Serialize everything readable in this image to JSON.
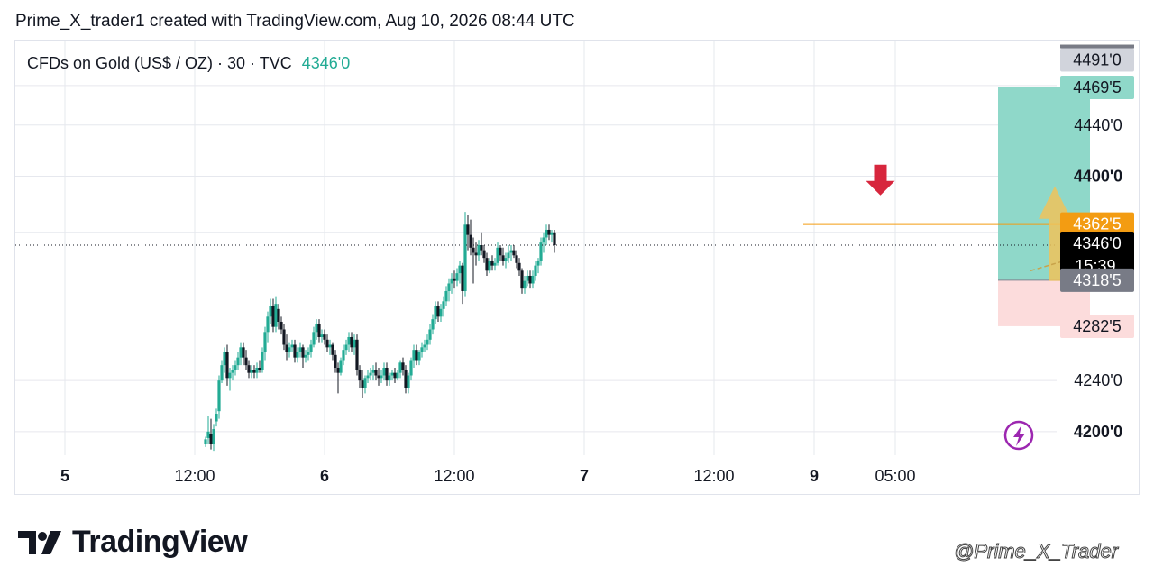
{
  "header": {
    "text": "Prime_X_trader1 created with TradingView.com, Aug 10, 2026 08:44 UTC"
  },
  "legend": {
    "symbol": "CFDs on Gold (US$ / OZ) · 30 · TVC",
    "last_price": "4346'0"
  },
  "branding": {
    "logo_text": "TradingView",
    "watermark": "@Prime_X_Trader"
  },
  "colors": {
    "up": "#22ab94",
    "down": "#131722",
    "target_zone": "#8fd8c9",
    "stop_zone": "#fcdcdc",
    "entry_line": "#f39c12",
    "signal_arrow": "#d7263d",
    "projection_arrow": "#f0c35a"
  },
  "chart_data": {
    "type": "candlestick",
    "y_axis": {
      "ylim": [
        4178,
        4505
      ],
      "ticks": [
        {
          "value": 4440,
          "label": "4440'0",
          "bold": false
        },
        {
          "value": 4400,
          "label": "4400'0",
          "bold": true
        },
        {
          "value": 4240,
          "label": "4240'0",
          "bold": false
        },
        {
          "value": 4200,
          "label": "4200'0",
          "bold": true
        }
      ]
    },
    "x_axis": {
      "ticks": [
        {
          "label": "5",
          "bold": true,
          "pos": 0.0
        },
        {
          "label": "12:00",
          "bold": false,
          "pos": 48.0
        },
        {
          "label": "6",
          "bold": true,
          "pos": 96.0
        },
        {
          "label": "12:00",
          "bold": false,
          "pos": 144.0
        },
        {
          "label": "7",
          "bold": true,
          "pos": 192.0
        },
        {
          "label": "12:00",
          "bold": false,
          "pos": 240.0
        },
        {
          "label": "9",
          "bold": true,
          "pos": 277.0
        },
        {
          "label": "05:00",
          "bold": false,
          "pos": 307.0
        }
      ]
    },
    "price_labels": [
      {
        "value": 4491,
        "label": "4491'0",
        "role": "high"
      },
      {
        "value": 4469.5,
        "label": "4469'5",
        "role": "target"
      },
      {
        "value": 4362.5,
        "label": "4362'5",
        "role": "entry"
      },
      {
        "value": 4346,
        "label": "4346'0",
        "sub": "15:39",
        "role": "last"
      },
      {
        "value": 4318.5,
        "label": "4318'5",
        "role": "stop-edge"
      },
      {
        "value": 4282.5,
        "label": "4282'5",
        "role": "stop"
      }
    ],
    "last_price": 4346,
    "entry_level": 4362.5,
    "position_tool": {
      "x_start": 293,
      "x_end": 327,
      "entry": 4318.5,
      "target": 4469.5,
      "stop": 4282.5
    },
    "signal_arrow": {
      "x": 249.5,
      "price": 4385,
      "direction": "down"
    },
    "projection_arrow": {
      "x": 314,
      "from": 4318,
      "to": 4392,
      "direction": "up"
    },
    "candles": [
      [
        4190,
        4196,
        4188,
        4194
      ],
      [
        4195,
        4212,
        4190,
        4200
      ],
      [
        4198,
        4210,
        4186,
        4190
      ],
      [
        4190,
        4206,
        4185,
        4202
      ],
      [
        4208,
        4218,
        4204,
        4214
      ],
      [
        4216,
        4244,
        4210,
        4240
      ],
      [
        4240,
        4256,
        4238,
        4252
      ],
      [
        4252,
        4266,
        4246,
        4262
      ],
      [
        4262,
        4268,
        4236,
        4242
      ],
      [
        4242,
        4250,
        4232,
        4246
      ],
      [
        4246,
        4252,
        4240,
        4248
      ],
      [
        4248,
        4256,
        4244,
        4252
      ],
      [
        4252,
        4262,
        4248,
        4258
      ],
      [
        4258,
        4270,
        4252,
        4266
      ],
      [
        4266,
        4270,
        4252,
        4258
      ],
      [
        4258,
        4264,
        4248,
        4252
      ],
      [
        4252,
        4256,
        4242,
        4246
      ],
      [
        4246,
        4252,
        4242,
        4248
      ],
      [
        4248,
        4252,
        4242,
        4246
      ],
      [
        4246,
        4254,
        4242,
        4250
      ],
      [
        4250,
        4256,
        4246,
        4248
      ],
      [
        4248,
        4266,
        4246,
        4262
      ],
      [
        4262,
        4282,
        4256,
        4278
      ],
      [
        4278,
        4294,
        4270,
        4290
      ],
      [
        4290,
        4304,
        4284,
        4298
      ],
      [
        4298,
        4304,
        4278,
        4282
      ],
      [
        4282,
        4306,
        4278,
        4300
      ],
      [
        4296,
        4300,
        4280,
        4286
      ],
      [
        4286,
        4290,
        4276,
        4280
      ],
      [
        4280,
        4284,
        4264,
        4268
      ],
      [
        4268,
        4276,
        4256,
        4262
      ],
      [
        4262,
        4270,
        4258,
        4266
      ],
      [
        4266,
        4272,
        4262,
        4268
      ],
      [
        4268,
        4272,
        4254,
        4258
      ],
      [
        4258,
        4266,
        4254,
        4262
      ],
      [
        4262,
        4270,
        4258,
        4266
      ],
      [
        4266,
        4268,
        4250,
        4258
      ],
      [
        4258,
        4264,
        4254,
        4260
      ],
      [
        4260,
        4266,
        4256,
        4262
      ],
      [
        4262,
        4272,
        4258,
        4268
      ],
      [
        4268,
        4282,
        4266,
        4278
      ],
      [
        4278,
        4288,
        4272,
        4284
      ],
      [
        4284,
        4288,
        4270,
        4274
      ],
      [
        4274,
        4280,
        4270,
        4276
      ],
      [
        4276,
        4280,
        4268,
        4272
      ],
      [
        4272,
        4276,
        4262,
        4266
      ],
      [
        4266,
        4272,
        4260,
        4268
      ],
      [
        4268,
        4270,
        4256,
        4260
      ],
      [
        4260,
        4264,
        4246,
        4250
      ],
      [
        4250,
        4254,
        4230,
        4246
      ],
      [
        4246,
        4258,
        4244,
        4256
      ],
      [
        4256,
        4268,
        4252,
        4264
      ],
      [
        4264,
        4272,
        4260,
        4268
      ],
      [
        4268,
        4278,
        4262,
        4274
      ],
      [
        4274,
        4278,
        4262,
        4266
      ],
      [
        4266,
        4276,
        4260,
        4272
      ],
      [
        4272,
        4276,
        4244,
        4248
      ],
      [
        4248,
        4252,
        4234,
        4240
      ],
      [
        4240,
        4248,
        4226,
        4234
      ],
      [
        4234,
        4244,
        4230,
        4242
      ],
      [
        4242,
        4248,
        4238,
        4244
      ],
      [
        4244,
        4250,
        4240,
        4246
      ],
      [
        4246,
        4252,
        4240,
        4248
      ],
      [
        4248,
        4254,
        4240,
        4244
      ],
      [
        4244,
        4250,
        4236,
        4242
      ],
      [
        4242,
        4248,
        4238,
        4244
      ],
      [
        4244,
        4254,
        4240,
        4250
      ],
      [
        4250,
        4254,
        4236,
        4240
      ],
      [
        4240,
        4246,
        4236,
        4244
      ],
      [
        4244,
        4248,
        4240,
        4246
      ],
      [
        4246,
        4250,
        4238,
        4242
      ],
      [
        4242,
        4248,
        4240,
        4246
      ],
      [
        4246,
        4256,
        4242,
        4254
      ],
      [
        4254,
        4258,
        4244,
        4248
      ],
      [
        4248,
        4252,
        4230,
        4234
      ],
      [
        4234,
        4246,
        4230,
        4244
      ],
      [
        4244,
        4258,
        4240,
        4256
      ],
      [
        4256,
        4268,
        4250,
        4264
      ],
      [
        4264,
        4268,
        4252,
        4256
      ],
      [
        4256,
        4264,
        4252,
        4262
      ],
      [
        4262,
        4270,
        4258,
        4266
      ],
      [
        4266,
        4272,
        4262,
        4268
      ],
      [
        4268,
        4276,
        4264,
        4272
      ],
      [
        4272,
        4284,
        4268,
        4280
      ],
      [
        4280,
        4292,
        4276,
        4288
      ],
      [
        4288,
        4302,
        4284,
        4298
      ],
      [
        4298,
        4302,
        4286,
        4290
      ],
      [
        4290,
        4300,
        4286,
        4296
      ],
      [
        4296,
        4306,
        4290,
        4302
      ],
      [
        4302,
        4314,
        4298,
        4310
      ],
      [
        4310,
        4320,
        4302,
        4316
      ],
      [
        4316,
        4324,
        4308,
        4320
      ],
      [
        4320,
        4326,
        4312,
        4318
      ],
      [
        4318,
        4328,
        4314,
        4324
      ],
      [
        4324,
        4334,
        4316,
        4330
      ],
      [
        4330,
        4332,
        4300,
        4310
      ],
      [
        4310,
        4372,
        4306,
        4362
      ],
      [
        4362,
        4370,
        4342,
        4354
      ],
      [
        4354,
        4366,
        4338,
        4344
      ],
      [
        4344,
        4352,
        4316,
        4340
      ],
      [
        4340,
        4348,
        4330,
        4338
      ],
      [
        4338,
        4350,
        4334,
        4346
      ],
      [
        4346,
        4356,
        4338,
        4342
      ],
      [
        4342,
        4346,
        4332,
        4336
      ],
      [
        4336,
        4340,
        4322,
        4326
      ],
      [
        4326,
        4336,
        4324,
        4334
      ],
      [
        4334,
        4338,
        4326,
        4330
      ],
      [
        4330,
        4336,
        4326,
        4332
      ],
      [
        4332,
        4348,
        4330,
        4344
      ],
      [
        4344,
        4346,
        4334,
        4338
      ],
      [
        4338,
        4344,
        4330,
        4334
      ],
      [
        4334,
        4340,
        4328,
        4336
      ],
      [
        4336,
        4346,
        4332,
        4340
      ],
      [
        4340,
        4346,
        4334,
        4342
      ],
      [
        4342,
        4346,
        4336,
        4338
      ],
      [
        4338,
        4342,
        4328,
        4332
      ],
      [
        4332,
        4336,
        4322,
        4326
      ],
      [
        4326,
        4328,
        4308,
        4312
      ],
      [
        4312,
        4322,
        4308,
        4318
      ],
      [
        4318,
        4326,
        4314,
        4322
      ],
      [
        4322,
        4326,
        4312,
        4316
      ],
      [
        4316,
        4326,
        4312,
        4322
      ],
      [
        4322,
        4334,
        4318,
        4330
      ],
      [
        4330,
        4336,
        4324,
        4334
      ],
      [
        4334,
        4352,
        4330,
        4348
      ],
      [
        4348,
        4356,
        4340,
        4352
      ],
      [
        4352,
        4362,
        4346,
        4358
      ],
      [
        4358,
        4362,
        4350,
        4354
      ],
      [
        4354,
        4358,
        4348,
        4356
      ],
      [
        4356,
        4358,
        4340,
        4346
      ]
    ]
  }
}
